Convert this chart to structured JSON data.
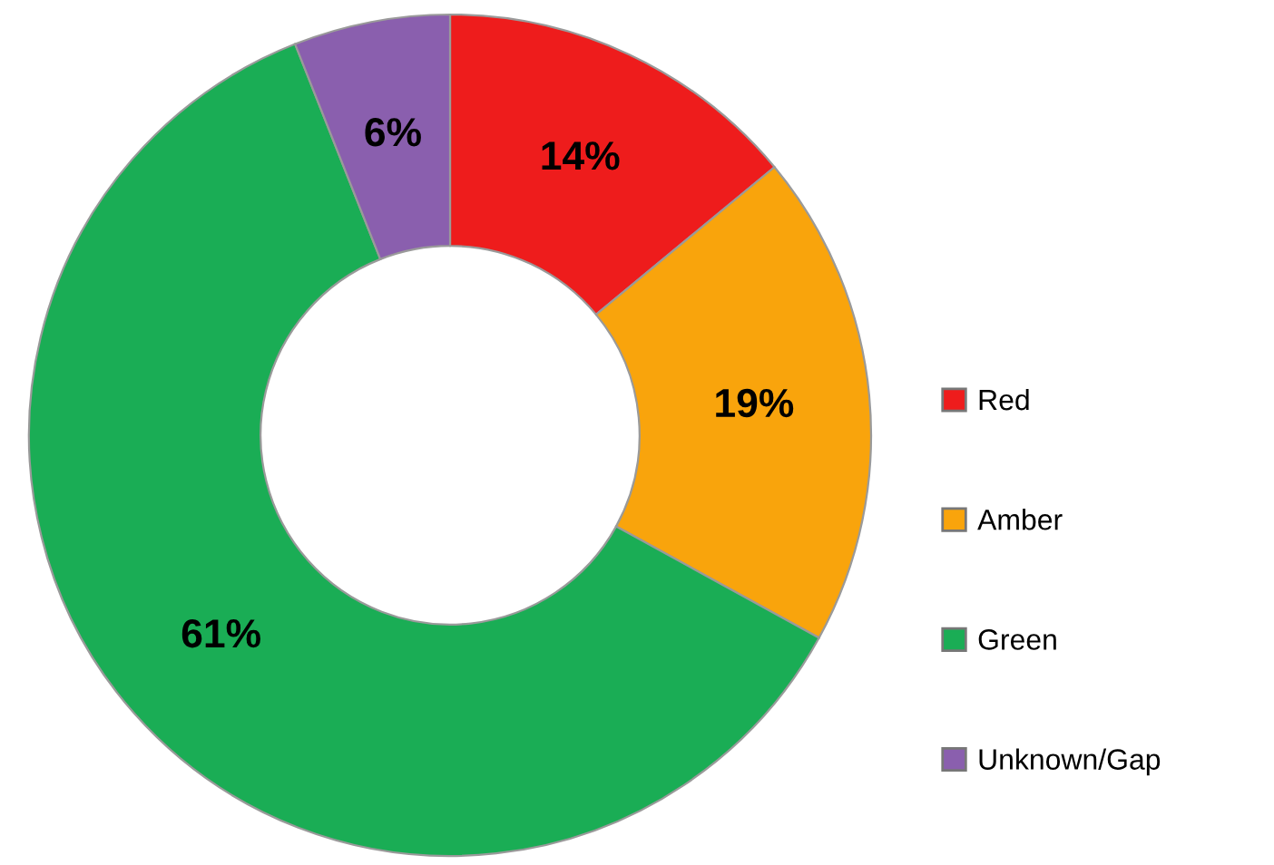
{
  "chart_data": {
    "type": "donut",
    "categories": [
      "Red",
      "Amber",
      "Green",
      "Unknown/Gap"
    ],
    "values": [
      14,
      19,
      61,
      6
    ],
    "colors": [
      "#ee1c1c",
      "#f9a40c",
      "#1aad55",
      "#8a5fae"
    ],
    "value_labels": [
      "14%",
      "19%",
      "61%",
      "6%"
    ],
    "legend": "right"
  }
}
